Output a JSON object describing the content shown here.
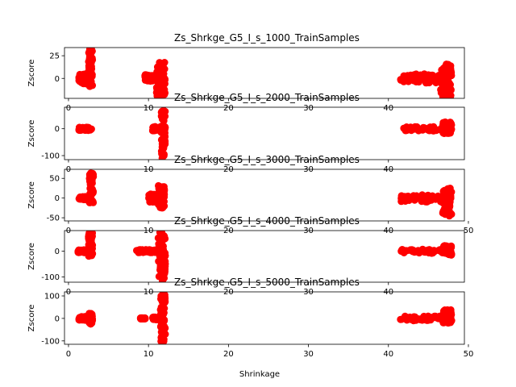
{
  "chart_data": [
    {
      "type": "scatter",
      "title": "Zs_Shrkge_G5_I_s_1000_TrainSamples",
      "xlabel": "",
      "ylabel": "Zscore",
      "xlim": [
        -0.5,
        49.5
      ],
      "ylim": [
        -22,
        34
      ],
      "xticks": [
        0,
        10,
        20,
        30,
        40
      ],
      "yticks": [
        0,
        25
      ],
      "marker_color": "#ff0000",
      "clusters": [
        {
          "x_min": 1.3,
          "x_max": 2.6,
          "y_low": -6,
          "y_high": 5
        },
        {
          "x_min": 2.5,
          "x_max": 3.0,
          "y_low": -9,
          "y_high": 33
        },
        {
          "x_min": 9.5,
          "x_max": 11.8,
          "y_low": -3,
          "y_high": 4
        },
        {
          "x_min": 11.0,
          "x_max": 12.1,
          "y_low": -21,
          "y_high": 19
        },
        {
          "x_min": 41.5,
          "x_max": 47.5,
          "y_low": -5,
          "y_high": 5
        },
        {
          "x_min": 46.5,
          "x_max": 47.9,
          "y_low": -21,
          "y_high": 17
        }
      ]
    },
    {
      "type": "scatter",
      "title": "Zs_Shrkge_G5_I_s_2000_TrainSamples",
      "xlabel": "",
      "ylabel": "Zscore",
      "xlim": [
        -0.5,
        49.5
      ],
      "ylim": [
        -115,
        80
      ],
      "xticks": [
        0,
        10,
        20,
        30,
        40
      ],
      "yticks": [
        -100,
        0
      ],
      "marker_color": "#ff0000",
      "clusters": [
        {
          "x_min": 1.3,
          "x_max": 2.9,
          "y_low": -6,
          "y_high": 6
        },
        {
          "x_min": 10.5,
          "x_max": 12.1,
          "y_low": -8,
          "y_high": 8
        },
        {
          "x_min": 11.6,
          "x_max": 12.1,
          "y_low": -110,
          "y_high": 75
        },
        {
          "x_min": 41.8,
          "x_max": 47.9,
          "y_low": -8,
          "y_high": 8
        },
        {
          "x_min": 46.8,
          "x_max": 47.9,
          "y_low": -18,
          "y_high": 25
        }
      ]
    },
    {
      "type": "scatter",
      "title": "Zs_Shrkge_G5_I_s_3000_TrainSamples",
      "xlabel": "",
      "ylabel": "Zscore",
      "xlim": [
        -0.5,
        49.5
      ],
      "ylim": [
        -58,
        73
      ],
      "xticks": [
        0,
        10,
        20,
        30,
        40,
        50
      ],
      "yticks": [
        -50,
        0,
        50
      ],
      "marker_color": "#ff0000",
      "clusters": [
        {
          "x_min": 1.3,
          "x_max": 2.6,
          "y_low": -4,
          "y_high": 4
        },
        {
          "x_min": 2.6,
          "x_max": 3.1,
          "y_low": -12,
          "y_high": 70
        },
        {
          "x_min": 10.0,
          "x_max": 11.6,
          "y_low": -10,
          "y_high": 10
        },
        {
          "x_min": 11.2,
          "x_max": 12.0,
          "y_low": -26,
          "y_high": 32
        },
        {
          "x_min": 41.5,
          "x_max": 47.6,
          "y_low": -10,
          "y_high": 8
        },
        {
          "x_min": 46.8,
          "x_max": 47.9,
          "y_low": -48,
          "y_high": 28
        }
      ]
    },
    {
      "type": "scatter",
      "title": "Zs_Shrkge_G5_I_s_4000_TrainSamples",
      "xlabel": "",
      "ylabel": "Zscore",
      "xlim": [
        -0.5,
        49.5
      ],
      "ylim": [
        -120,
        80
      ],
      "xticks": [
        0,
        10,
        20,
        30,
        40
      ],
      "yticks": [
        -100,
        0
      ],
      "marker_color": "#ff0000",
      "clusters": [
        {
          "x_min": 1.2,
          "x_max": 2.6,
          "y_low": -5,
          "y_high": 5
        },
        {
          "x_min": 2.5,
          "x_max": 3.0,
          "y_low": -20,
          "y_high": 75
        },
        {
          "x_min": 8.5,
          "x_max": 11.6,
          "y_low": -6,
          "y_high": 6
        },
        {
          "x_min": 11.2,
          "x_max": 12.1,
          "y_low": -115,
          "y_high": 78
        },
        {
          "x_min": 41.5,
          "x_max": 47.6,
          "y_low": -8,
          "y_high": 8
        },
        {
          "x_min": 46.8,
          "x_max": 47.9,
          "y_low": -15,
          "y_high": 22
        }
      ]
    },
    {
      "type": "scatter",
      "title": "Zs_Shrkge_G5_I_s_5000_TrainSamples",
      "xlabel": "Shrinkage",
      "ylabel": "Zscore",
      "xlim": [
        -0.5,
        49.5
      ],
      "ylim": [
        -115,
        118
      ],
      "xticks": [
        0,
        10,
        20,
        30,
        40,
        50
      ],
      "yticks": [
        -100,
        0,
        100
      ],
      "marker_color": "#ff0000",
      "clusters": [
        {
          "x_min": 1.3,
          "x_max": 2.6,
          "y_low": -8,
          "y_high": 8
        },
        {
          "x_min": 2.5,
          "x_max": 3.0,
          "y_low": -25,
          "y_high": 22
        },
        {
          "x_min": 9.0,
          "x_max": 9.6,
          "y_low": -2,
          "y_high": 2
        },
        {
          "x_min": 10.5,
          "x_max": 11.6,
          "y_low": -6,
          "y_high": 6
        },
        {
          "x_min": 11.5,
          "x_max": 12.1,
          "y_low": -112,
          "y_high": 112
        },
        {
          "x_min": 41.5,
          "x_max": 47.6,
          "y_low": -10,
          "y_high": 10
        },
        {
          "x_min": 46.8,
          "x_max": 47.9,
          "y_low": -22,
          "y_high": 38
        }
      ]
    }
  ]
}
